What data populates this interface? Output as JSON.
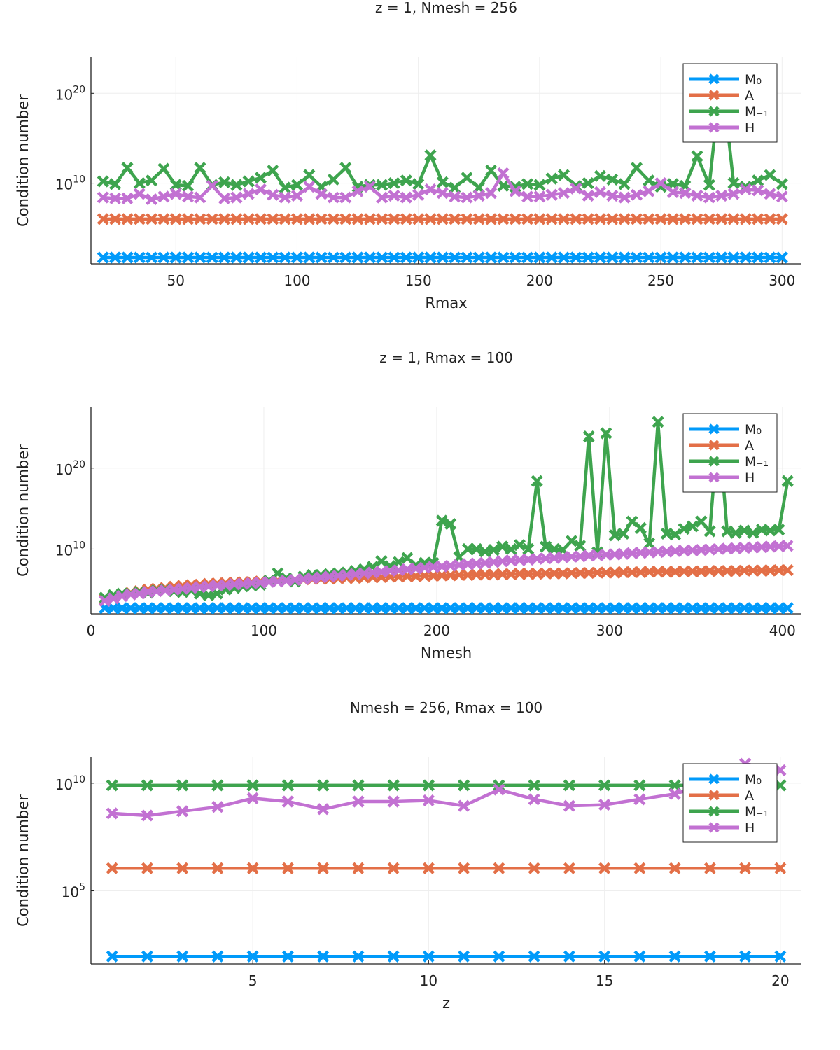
{
  "chart_data": [
    {
      "type": "line",
      "title": "z = 1, Nmesh = 256",
      "xlabel": "Rmax",
      "ylabel": "Condition number",
      "yscale": "log",
      "xlim": [
        15,
        308
      ],
      "ylim_log10": [
        1.0,
        24.0
      ],
      "xticks": [
        50,
        100,
        150,
        200,
        250,
        300
      ],
      "xtick_labels": [
        "50",
        "100",
        "150",
        "200",
        "250",
        "300"
      ],
      "yticks_log10": [
        10,
        20
      ],
      "ytick_labels": [
        "10^10",
        "10^20"
      ],
      "legend_position": "top-right",
      "grid": true,
      "x": [
        20,
        25,
        30,
        35,
        40,
        45,
        50,
        55,
        60,
        65,
        70,
        75,
        80,
        85,
        90,
        95,
        100,
        105,
        110,
        115,
        120,
        125,
        130,
        135,
        140,
        145,
        150,
        155,
        160,
        165,
        170,
        175,
        180,
        185,
        190,
        195,
        200,
        205,
        210,
        215,
        220,
        225,
        230,
        235,
        240,
        245,
        250,
        255,
        260,
        265,
        270,
        275,
        280,
        285,
        290,
        295,
        300
      ],
      "series": [
        {
          "name": "M₀",
          "color": "#009AFA",
          "marker": "x",
          "values_log10": [
            1.7,
            1.7,
            1.7,
            1.7,
            1.7,
            1.7,
            1.7,
            1.7,
            1.7,
            1.7,
            1.7,
            1.7,
            1.7,
            1.7,
            1.7,
            1.7,
            1.7,
            1.7,
            1.7,
            1.7,
            1.7,
            1.7,
            1.7,
            1.7,
            1.7,
            1.7,
            1.7,
            1.7,
            1.7,
            1.7,
            1.7,
            1.7,
            1.7,
            1.7,
            1.7,
            1.7,
            1.7,
            1.7,
            1.7,
            1.7,
            1.7,
            1.7,
            1.7,
            1.7,
            1.7,
            1.7,
            1.7,
            1.7,
            1.7,
            1.7,
            1.7,
            1.7,
            1.7,
            1.7,
            1.7,
            1.7,
            1.7
          ]
        },
        {
          "name": "A",
          "color": "#E36F47",
          "marker": "x",
          "values_log10": [
            6.0,
            6.0,
            6.0,
            6.0,
            6.0,
            6.0,
            6.0,
            6.0,
            6.0,
            6.0,
            6.0,
            6.0,
            6.0,
            6.0,
            6.0,
            6.0,
            6.0,
            6.0,
            6.0,
            6.0,
            6.0,
            6.0,
            6.0,
            6.0,
            6.0,
            6.0,
            6.0,
            6.0,
            6.0,
            6.0,
            6.0,
            6.0,
            6.0,
            6.0,
            6.0,
            6.0,
            6.0,
            6.0,
            6.0,
            6.0,
            6.0,
            6.0,
            6.0,
            6.0,
            6.0,
            6.0,
            6.0,
            6.0,
            6.0,
            6.0,
            6.0,
            6.0,
            6.0,
            6.0,
            6.0,
            6.0,
            6.0
          ]
        },
        {
          "name": "M₋₁",
          "color": "#3EA44E",
          "marker": "x",
          "values_log10": [
            10.2,
            9.9,
            11.7,
            10.0,
            10.3,
            11.6,
            9.8,
            9.7,
            11.7,
            9.8,
            10.1,
            9.8,
            10.2,
            10.6,
            11.4,
            9.5,
            9.8,
            10.9,
            9.6,
            10.4,
            11.7,
            9.6,
            9.8,
            9.8,
            10.0,
            10.3,
            9.9,
            13.1,
            10.1,
            9.5,
            10.6,
            9.5,
            11.4,
            9.7,
            9.6,
            9.9,
            9.8,
            10.5,
            10.9,
            9.7,
            10.0,
            10.8,
            10.4,
            9.9,
            11.7,
            10.3,
            9.6,
            9.9,
            9.7,
            13.0,
            9.8,
            22.4,
            10.0,
            9.6,
            10.3,
            10.9,
            9.9
          ]
        },
        {
          "name": "H",
          "color": "#C271D2",
          "marker": "x",
          "values_log10": [
            8.4,
            8.3,
            8.3,
            8.8,
            8.2,
            8.5,
            8.8,
            8.5,
            8.4,
            9.7,
            8.3,
            8.4,
            8.8,
            9.3,
            8.7,
            8.4,
            8.6,
            9.6,
            8.8,
            8.4,
            8.4,
            9.1,
            9.6,
            8.4,
            8.6,
            8.4,
            8.7,
            9.3,
            8.9,
            8.5,
            8.4,
            8.6,
            8.9,
            11.1,
            9.1,
            8.5,
            8.5,
            8.7,
            8.9,
            9.4,
            8.6,
            9.0,
            8.6,
            8.4,
            8.7,
            9.1,
            10.0,
            9.0,
            8.9,
            8.6,
            8.4,
            8.6,
            8.8,
            9.3,
            9.2,
            8.8,
            8.5
          ]
        }
      ]
    },
    {
      "type": "line",
      "title": "z = 1, Rmax = 100",
      "xlabel": "Nmesh",
      "ylabel": "Condition number",
      "yscale": "log",
      "xlim": [
        0,
        411
      ],
      "ylim_log10": [
        2.0,
        27.5
      ],
      "xticks": [
        0,
        100,
        200,
        300,
        400
      ],
      "xtick_labels": [
        "0",
        "100",
        "200",
        "300",
        "400"
      ],
      "yticks_log10": [
        10,
        20
      ],
      "ytick_labels": [
        "10^10",
        "10^20"
      ],
      "legend_position": "top-right",
      "grid": true,
      "x": [
        8,
        13,
        18,
        23,
        28,
        33,
        38,
        43,
        48,
        53,
        58,
        63,
        68,
        73,
        78,
        83,
        88,
        93,
        98,
        103,
        108,
        113,
        118,
        123,
        128,
        133,
        138,
        143,
        148,
        153,
        158,
        163,
        168,
        173,
        178,
        183,
        188,
        193,
        198,
        203,
        208,
        213,
        218,
        223,
        228,
        233,
        238,
        243,
        248,
        253,
        258,
        263,
        268,
        273,
        278,
        283,
        288,
        293,
        298,
        303,
        308,
        313,
        318,
        323,
        328,
        333,
        338,
        343,
        348,
        353,
        358,
        363,
        368,
        373,
        378,
        383,
        388,
        393,
        398,
        403
      ],
      "series": [
        {
          "name": "M₀",
          "color": "#009AFA",
          "marker": "x",
          "values_log10": [
            2.7,
            2.7,
            2.7,
            2.7,
            2.7,
            2.7,
            2.7,
            2.7,
            2.7,
            2.7,
            2.7,
            2.7,
            2.7,
            2.7,
            2.7,
            2.7,
            2.7,
            2.7,
            2.7,
            2.7,
            2.7,
            2.7,
            2.7,
            2.7,
            2.7,
            2.7,
            2.7,
            2.7,
            2.7,
            2.7,
            2.7,
            2.7,
            2.7,
            2.7,
            2.7,
            2.7,
            2.7,
            2.7,
            2.7,
            2.7,
            2.7,
            2.7,
            2.7,
            2.7,
            2.7,
            2.7,
            2.7,
            2.7,
            2.7,
            2.7,
            2.7,
            2.7,
            2.7,
            2.7,
            2.7,
            2.7,
            2.7,
            2.7,
            2.7,
            2.7,
            2.7,
            2.7,
            2.7,
            2.7,
            2.7,
            2.7,
            2.7,
            2.7,
            2.7,
            2.7,
            2.7,
            2.7,
            2.7,
            2.7,
            2.7,
            2.7,
            2.7,
            2.7,
            2.7,
            2.7
          ]
        },
        {
          "name": "A",
          "color": "#E36F47",
          "marker": "x",
          "values_log10": [
            3.8,
            4.1,
            4.4,
            4.6,
            4.8,
            5.0,
            5.1,
            5.2,
            5.35,
            5.45,
            5.55,
            5.6,
            5.7,
            5.75,
            5.8,
            5.85,
            5.9,
            5.95,
            6.0,
            6.05,
            6.1,
            6.15,
            6.2,
            6.25,
            6.3,
            6.35,
            6.35,
            6.4,
            6.45,
            6.45,
            6.5,
            6.55,
            6.55,
            6.6,
            6.6,
            6.65,
            6.65,
            6.7,
            6.7,
            6.75,
            6.75,
            6.8,
            6.8,
            6.85,
            6.85,
            6.85,
            6.9,
            6.9,
            6.95,
            6.95,
            6.95,
            7.0,
            7.0,
            7.0,
            7.05,
            7.05,
            7.05,
            7.1,
            7.1,
            7.1,
            7.15,
            7.15,
            7.15,
            7.2,
            7.2,
            7.2,
            7.2,
            7.25,
            7.25,
            7.25,
            7.3,
            7.3,
            7.3,
            7.3,
            7.35,
            7.35,
            7.35,
            7.35,
            7.4,
            7.4
          ]
        },
        {
          "name": "M₋₁",
          "color": "#3EA44E",
          "marker": "x",
          "values_log10": [
            4.0,
            4.3,
            4.5,
            4.5,
            4.7,
            4.6,
            4.9,
            5.0,
            4.8,
            4.7,
            4.9,
            4.5,
            4.3,
            4.5,
            5.0,
            5.2,
            5.4,
            5.5,
            5.6,
            6.1,
            7.0,
            6.4,
            6.0,
            6.6,
            6.8,
            6.8,
            6.9,
            7.0,
            7.1,
            7.3,
            7.5,
            7.8,
            8.5,
            7.9,
            8.4,
            8.9,
            8.0,
            8.3,
            8.3,
            13.5,
            13.1,
            9.0,
            10.0,
            10.0,
            9.7,
            9.9,
            10.3,
            10.0,
            10.5,
            10.0,
            18.4,
            10.3,
            10.0,
            9.9,
            11.0,
            10.4,
            23.9,
            9.6,
            24.3,
            11.7,
            11.9,
            13.4,
            12.6,
            10.7,
            25.7,
            11.9,
            11.8,
            12.5,
            12.8,
            13.4,
            12.2,
            25.5,
            12.2,
            12.0,
            12.3,
            12.0,
            12.4,
            12.3,
            12.4,
            18.4
          ]
        },
        {
          "name": "H",
          "color": "#C271D2",
          "marker": "x",
          "values_log10": [
            3.6,
            3.9,
            4.2,
            4.4,
            4.5,
            4.7,
            4.8,
            4.9,
            5.0,
            5.1,
            5.2,
            5.3,
            5.4,
            5.5,
            5.55,
            5.65,
            5.7,
            5.8,
            5.85,
            5.95,
            6.0,
            6.1,
            6.2,
            6.3,
            6.4,
            6.5,
            6.6,
            6.7,
            6.8,
            6.9,
            7.0,
            7.1,
            7.2,
            7.3,
            7.4,
            7.5,
            7.6,
            7.7,
            7.8,
            7.85,
            7.95,
            8.05,
            8.15,
            8.2,
            8.3,
            8.4,
            8.5,
            8.6,
            8.65,
            8.7,
            8.8,
            8.85,
            8.9,
            9.0,
            9.05,
            9.1,
            9.2,
            9.25,
            9.3,
            9.35,
            9.4,
            9.5,
            9.55,
            9.6,
            9.65,
            9.7,
            9.75,
            9.8,
            9.85,
            9.9,
            9.95,
            10.0,
            10.05,
            10.1,
            10.15,
            10.2,
            10.25,
            10.3,
            10.35,
            10.4
          ]
        }
      ]
    },
    {
      "type": "line",
      "title": "Nmesh = 256, Rmax = 100",
      "xlabel": "z",
      "ylabel": "Condition number",
      "yscale": "log",
      "xlim": [
        0.4,
        20.6
      ],
      "ylim_log10": [
        1.6,
        11.2
      ],
      "xticks": [
        5,
        10,
        15,
        20
      ],
      "xtick_labels": [
        "5",
        "10",
        "15",
        "20"
      ],
      "yticks_log10": [
        5,
        10
      ],
      "ytick_labels": [
        "10^5",
        "10^10"
      ],
      "legend_position": "top-right",
      "grid": true,
      "x": [
        1,
        2,
        3,
        4,
        5,
        6,
        7,
        8,
        9,
        10,
        11,
        12,
        13,
        14,
        15,
        16,
        17,
        18,
        19,
        20
      ],
      "series": [
        {
          "name": "M₀",
          "color": "#009AFA",
          "marker": "x",
          "values_log10": [
            1.95,
            1.95,
            1.95,
            1.95,
            1.95,
            1.95,
            1.95,
            1.95,
            1.95,
            1.95,
            1.95,
            1.95,
            1.95,
            1.95,
            1.95,
            1.95,
            1.95,
            1.95,
            1.95,
            1.95
          ]
        },
        {
          "name": "A",
          "color": "#E36F47",
          "marker": "x",
          "values_log10": [
            6.05,
            6.05,
            6.05,
            6.05,
            6.05,
            6.05,
            6.05,
            6.05,
            6.05,
            6.05,
            6.05,
            6.05,
            6.05,
            6.05,
            6.05,
            6.05,
            6.05,
            6.05,
            6.05,
            6.05
          ]
        },
        {
          "name": "M₋₁",
          "color": "#3EA44E",
          "marker": "x",
          "values_log10": [
            9.9,
            9.9,
            9.9,
            9.9,
            9.9,
            9.9,
            9.9,
            9.9,
            9.9,
            9.9,
            9.9,
            9.9,
            9.9,
            9.9,
            9.9,
            9.9,
            9.9,
            9.9,
            9.9,
            9.9
          ]
        },
        {
          "name": "H",
          "color": "#C271D2",
          "marker": "x",
          "values_log10": [
            8.6,
            8.5,
            8.7,
            8.9,
            9.3,
            9.15,
            8.8,
            9.15,
            9.15,
            9.2,
            8.95,
            9.7,
            9.25,
            8.95,
            9.0,
            9.25,
            9.5,
            10.0,
            10.9,
            10.6
          ]
        }
      ]
    }
  ]
}
